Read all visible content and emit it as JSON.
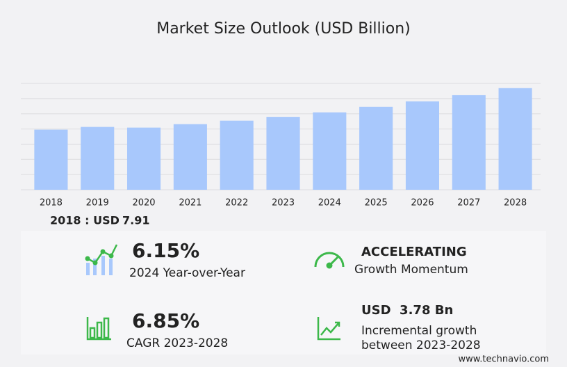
{
  "chart_data": {
    "type": "bar",
    "title": "Market Size Outlook (USD Billion)",
    "categories": [
      "2018",
      "2019",
      "2020",
      "2021",
      "2022",
      "2023",
      "2024",
      "2025",
      "2026",
      "2027",
      "2028"
    ],
    "values": [
      7.91,
      8.27,
      8.18,
      8.64,
      9.09,
      9.6,
      10.19,
      10.91,
      11.64,
      12.45,
      13.38
    ],
    "color": "#a8c8fc",
    "ylim": [
      0,
      14
    ],
    "yticks": [
      0,
      2,
      4,
      6,
      8,
      10,
      12,
      14
    ],
    "tick_labels": false,
    "grid": true,
    "highlight_label": "2018 : USD"
  },
  "highlights": [
    {
      "value": "6.15%",
      "caption": "2024 Year-over-Year"
    },
    {
      "value": "ACCELERATING",
      "caption": "Growth Momentum"
    },
    {
      "value": "6.85%",
      "caption": "CAGR 2023-2028"
    },
    {
      "value": "USD  3.78 Bn",
      "caption": "Incremental growth",
      "caption2": "between 2023-2028"
    }
  ],
  "footer": "www.technavio.com"
}
